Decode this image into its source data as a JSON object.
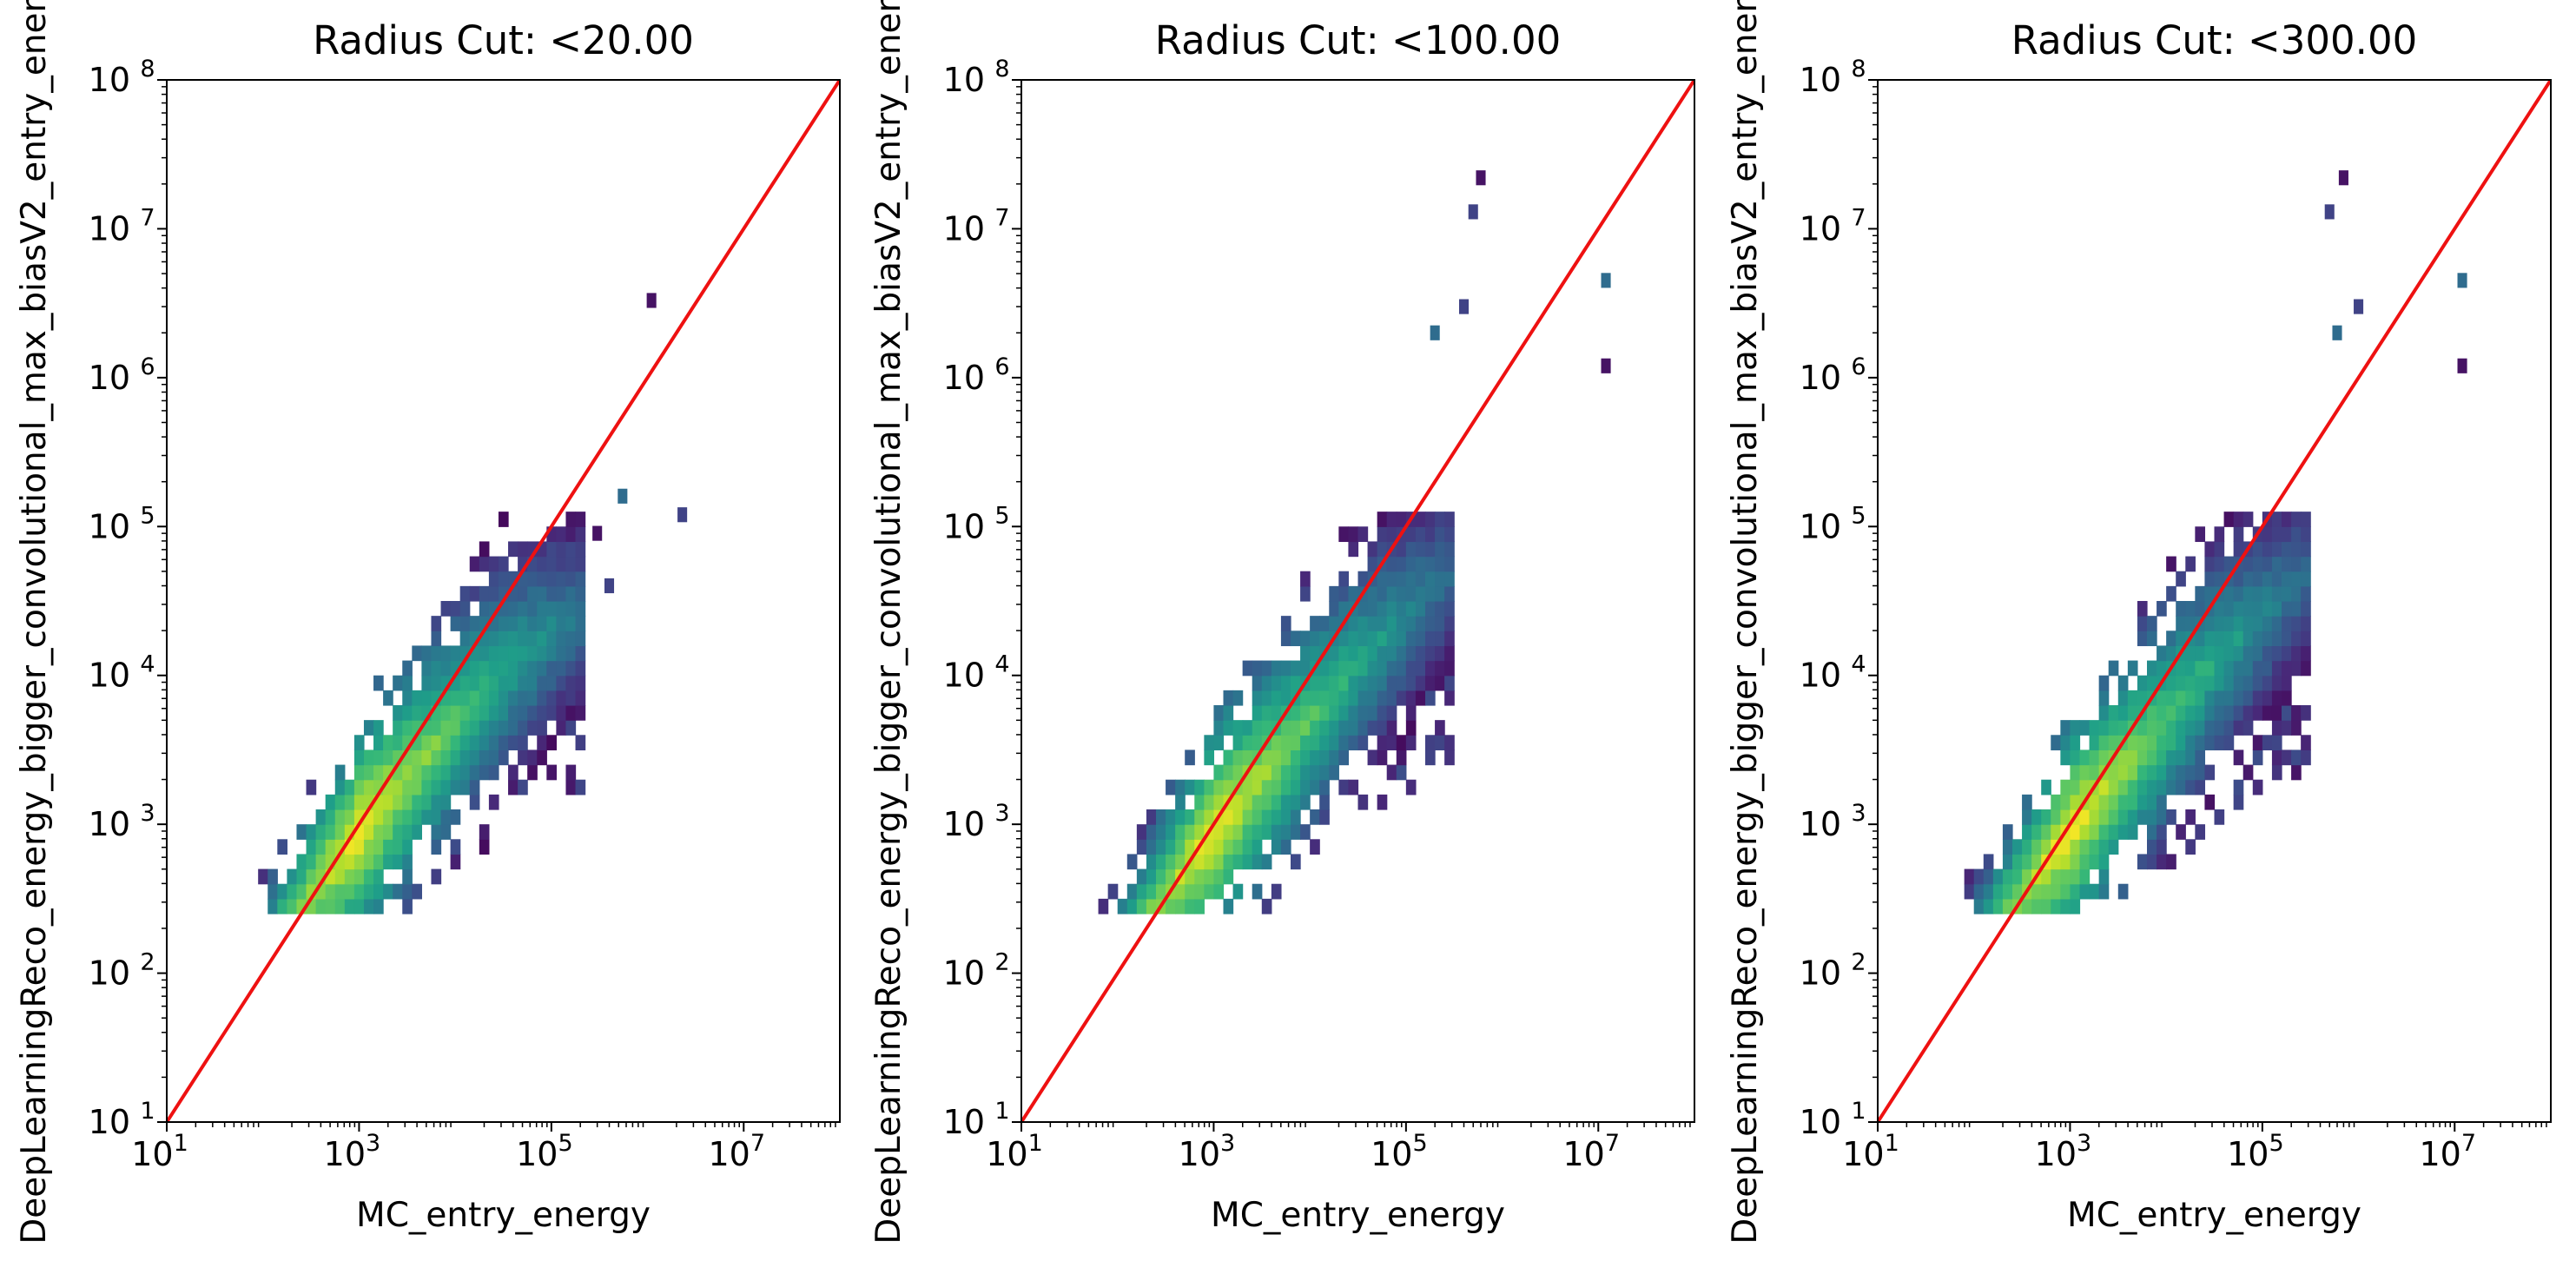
{
  "figure": {
    "panel_count": 3
  },
  "colors": {
    "identity_line": "#ee1111",
    "colormap": "viridis",
    "axes": "#000000",
    "background": "#ffffff"
  },
  "chart_data": [
    {
      "type": "heatmap",
      "title": "Radius Cut: <20.00",
      "xlabel": "MC_entry_energy",
      "ylabel": "DeepLearningReco_energy_bigger_convolutional_max_biasV2_entry_energy",
      "xscale": "log",
      "yscale": "log",
      "xlim": [
        10,
        100000000
      ],
      "ylim": [
        10,
        100000000
      ],
      "x_ticks": [
        {
          "base": "10",
          "exp": "1"
        },
        {
          "base": "10",
          "exp": "3"
        },
        {
          "base": "10",
          "exp": "5"
        },
        {
          "base": "10",
          "exp": "7"
        }
      ],
      "y_ticks": [
        {
          "base": "10",
          "exp": "1"
        },
        {
          "base": "10",
          "exp": "2"
        },
        {
          "base": "10",
          "exp": "3"
        },
        {
          "base": "10",
          "exp": "4"
        },
        {
          "base": "10",
          "exp": "5"
        },
        {
          "base": "10",
          "exp": "6"
        },
        {
          "base": "10",
          "exp": "7"
        },
        {
          "base": "10",
          "exp": "8"
        }
      ],
      "reference_line": {
        "kind": "y = x",
        "color": "#ee1111"
      },
      "grid": false,
      "density_ridge": [
        [
          250,
          270
        ],
        [
          1000,
          900
        ],
        [
          4000,
          2500
        ],
        [
          20000,
          8000
        ],
        [
          100000,
          20000
        ]
      ],
      "outlier_points": [
        [
          1100000,
          3300000
        ],
        [
          2300000,
          120000
        ],
        [
          550000,
          160000
        ],
        [
          300000,
          90000
        ],
        [
          400000,
          40000
        ]
      ]
    },
    {
      "type": "heatmap",
      "title": "Radius Cut: <100.00",
      "xlabel": "MC_entry_energy",
      "ylabel": "DeepLearningReco_energy_bigger_convolutional_max_biasV2_entry_energy",
      "xscale": "log",
      "yscale": "log",
      "xlim": [
        10,
        100000000
      ],
      "ylim": [
        10,
        100000000
      ],
      "x_ticks": [
        {
          "base": "10",
          "exp": "1"
        },
        {
          "base": "10",
          "exp": "3"
        },
        {
          "base": "10",
          "exp": "5"
        },
        {
          "base": "10",
          "exp": "7"
        }
      ],
      "y_ticks": [
        {
          "base": "10",
          "exp": "1"
        },
        {
          "base": "10",
          "exp": "2"
        },
        {
          "base": "10",
          "exp": "3"
        },
        {
          "base": "10",
          "exp": "4"
        },
        {
          "base": "10",
          "exp": "5"
        },
        {
          "base": "10",
          "exp": "6"
        },
        {
          "base": "10",
          "exp": "7"
        },
        {
          "base": "10",
          "exp": "8"
        }
      ],
      "reference_line": {
        "kind": "y = x",
        "color": "#ee1111"
      },
      "grid": false,
      "density_ridge": [
        [
          250,
          270
        ],
        [
          1000,
          900
        ],
        [
          5000,
          3000
        ],
        [
          30000,
          12000
        ],
        [
          200000,
          40000
        ]
      ],
      "outlier_points": [
        [
          600000,
          22000000
        ],
        [
          500000,
          13000000
        ],
        [
          12000000,
          4500000
        ],
        [
          12000000,
          1200000
        ],
        [
          400000,
          3000000
        ],
        [
          200000,
          2000000
        ]
      ]
    },
    {
      "type": "heatmap",
      "title": "Radius Cut: <300.00",
      "xlabel": "MC_entry_energy",
      "ylabel": "DeepLearningReco_energy_bigger_convolutional_max_biasV2_entry_energy",
      "xscale": "log",
      "yscale": "log",
      "xlim": [
        10,
        100000000
      ],
      "ylim": [
        10,
        100000000
      ],
      "x_ticks": [
        {
          "base": "10",
          "exp": "1"
        },
        {
          "base": "10",
          "exp": "3"
        },
        {
          "base": "10",
          "exp": "5"
        },
        {
          "base": "10",
          "exp": "7"
        }
      ],
      "y_ticks": [
        {
          "base": "10",
          "exp": "1"
        },
        {
          "base": "10",
          "exp": "2"
        },
        {
          "base": "10",
          "exp": "3"
        },
        {
          "base": "10",
          "exp": "4"
        },
        {
          "base": "10",
          "exp": "5"
        },
        {
          "base": "10",
          "exp": "6"
        },
        {
          "base": "10",
          "exp": "7"
        },
        {
          "base": "10",
          "exp": "8"
        }
      ],
      "reference_line": {
        "kind": "y = x",
        "color": "#ee1111"
      },
      "grid": false,
      "density_ridge": [
        [
          250,
          270
        ],
        [
          1000,
          900
        ],
        [
          5000,
          3000
        ],
        [
          30000,
          12000
        ],
        [
          200000,
          40000
        ]
      ],
      "outlier_points": [
        [
          700000,
          22000000
        ],
        [
          500000,
          13000000
        ],
        [
          12000000,
          4500000
        ],
        [
          12000000,
          1200000
        ],
        [
          1000000,
          3000000
        ],
        [
          600000,
          2000000
        ]
      ]
    }
  ]
}
